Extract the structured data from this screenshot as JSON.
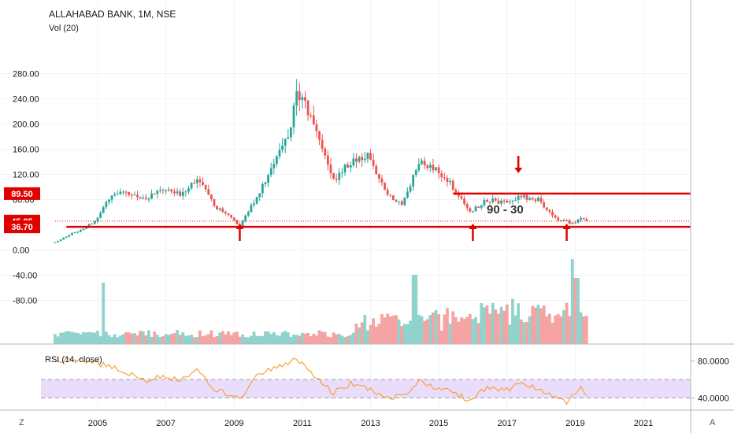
{
  "header": {
    "title": "ALLAHABAD BANK, 1M, NSE",
    "volume_label": "Vol (20)"
  },
  "rsi": {
    "label": "RSI (14, close)",
    "ticks": [
      "80.0000",
      "40.0000"
    ],
    "band_fill": "#e9ddfb",
    "line_color": "#f7a23b"
  },
  "corner": {
    "left": "Z",
    "right": "A"
  },
  "annotation": {
    "text": "90 - 30"
  },
  "colors": {
    "up": "#26a69a",
    "down": "#ef5350",
    "vol_up": "#8fd3cc",
    "vol_down": "#f5a3a3",
    "level": "#e00000",
    "arrow": "#e00000"
  },
  "chart_data": {
    "type": "candlestick",
    "x_axis": {
      "type": "date",
      "tick_labels": [
        "2005",
        "2007",
        "2009",
        "2011",
        "2013",
        "2015",
        "2017",
        "2019",
        "2021"
      ]
    },
    "y_axis": {
      "tick_labels": [
        "280.00",
        "240.00",
        "200.00",
        "160.00",
        "120.00",
        "80.00",
        "0.00",
        "-40.00",
        "-80.00"
      ]
    },
    "price_labels": [
      {
        "value": 89.5,
        "text": "89.50"
      },
      {
        "value": 45.85,
        "text": "45.85"
      },
      {
        "value": 36.7,
        "text": "36.70"
      }
    ],
    "levels": [
      {
        "name": "resistance",
        "value": 89.5,
        "from": "2015-06"
      },
      {
        "name": "support",
        "value": 36.7,
        "from": "2004-02"
      },
      {
        "name": "last-price",
        "value": 45.85,
        "from": "2003-10"
      }
    ],
    "arrows": [
      {
        "date": "2009-03",
        "direction": "up"
      },
      {
        "date": "2016-01",
        "direction": "up"
      },
      {
        "date": "2017-05",
        "direction": "down"
      },
      {
        "date": "2018-10",
        "direction": "up"
      }
    ],
    "series": {
      "close": [
        [
          "2003-10",
          12
        ],
        [
          "2004-01",
          20
        ],
        [
          "2004-06",
          30
        ],
        [
          "2004-12",
          45
        ],
        [
          "2005-06",
          90
        ],
        [
          "2005-12",
          88
        ],
        [
          "2006-06",
          82
        ],
        [
          "2006-12",
          95
        ],
        [
          "2007-06",
          88
        ],
        [
          "2007-12",
          115
        ],
        [
          "2008-06",
          70
        ],
        [
          "2008-12",
          50
        ],
        [
          "2009-03",
          38
        ],
        [
          "2009-09",
          85
        ],
        [
          "2010-03",
          135
        ],
        [
          "2010-09",
          195
        ],
        [
          "2010-11",
          255
        ],
        [
          "2011-06",
          190
        ],
        [
          "2011-12",
          110
        ],
        [
          "2012-06",
          140
        ],
        [
          "2012-12",
          150
        ],
        [
          "2013-06",
          95
        ],
        [
          "2013-12",
          70
        ],
        [
          "2014-06",
          140
        ],
        [
          "2014-12",
          130
        ],
        [
          "2015-06",
          100
        ],
        [
          "2015-12",
          60
        ],
        [
          "2016-06",
          80
        ],
        [
          "2016-12",
          75
        ],
        [
          "2017-06",
          85
        ],
        [
          "2017-12",
          80
        ],
        [
          "2018-06",
          50
        ],
        [
          "2018-12",
          42
        ],
        [
          "2019-03",
          52
        ],
        [
          "2019-05",
          45.85
        ]
      ],
      "rsi": [
        [
          "2003-10",
          80
        ],
        [
          "2004-06",
          82
        ],
        [
          "2005-03",
          76
        ],
        [
          "2005-12",
          67
        ],
        [
          "2006-06",
          59
        ],
        [
          "2006-12",
          64
        ],
        [
          "2007-06",
          58
        ],
        [
          "2007-12",
          71
        ],
        [
          "2008-06",
          50
        ],
        [
          "2008-12",
          42
        ],
        [
          "2009-03",
          38
        ],
        [
          "2009-09",
          66
        ],
        [
          "2010-03",
          71
        ],
        [
          "2010-11",
          82
        ],
        [
          "2011-06",
          62
        ],
        [
          "2011-12",
          45
        ],
        [
          "2012-06",
          56
        ],
        [
          "2012-12",
          50
        ],
        [
          "2013-06",
          40
        ],
        [
          "2013-12",
          42
        ],
        [
          "2014-06",
          58
        ],
        [
          "2014-12",
          50
        ],
        [
          "2015-06",
          47
        ],
        [
          "2015-12",
          36
        ],
        [
          "2016-06",
          52
        ],
        [
          "2016-12",
          48
        ],
        [
          "2017-06",
          55
        ],
        [
          "2017-12",
          50
        ],
        [
          "2018-06",
          42
        ],
        [
          "2018-10",
          36
        ],
        [
          "2019-03",
          50
        ],
        [
          "2019-05",
          45
        ]
      ],
      "rsi_band": [
        40,
        60
      ]
    }
  }
}
